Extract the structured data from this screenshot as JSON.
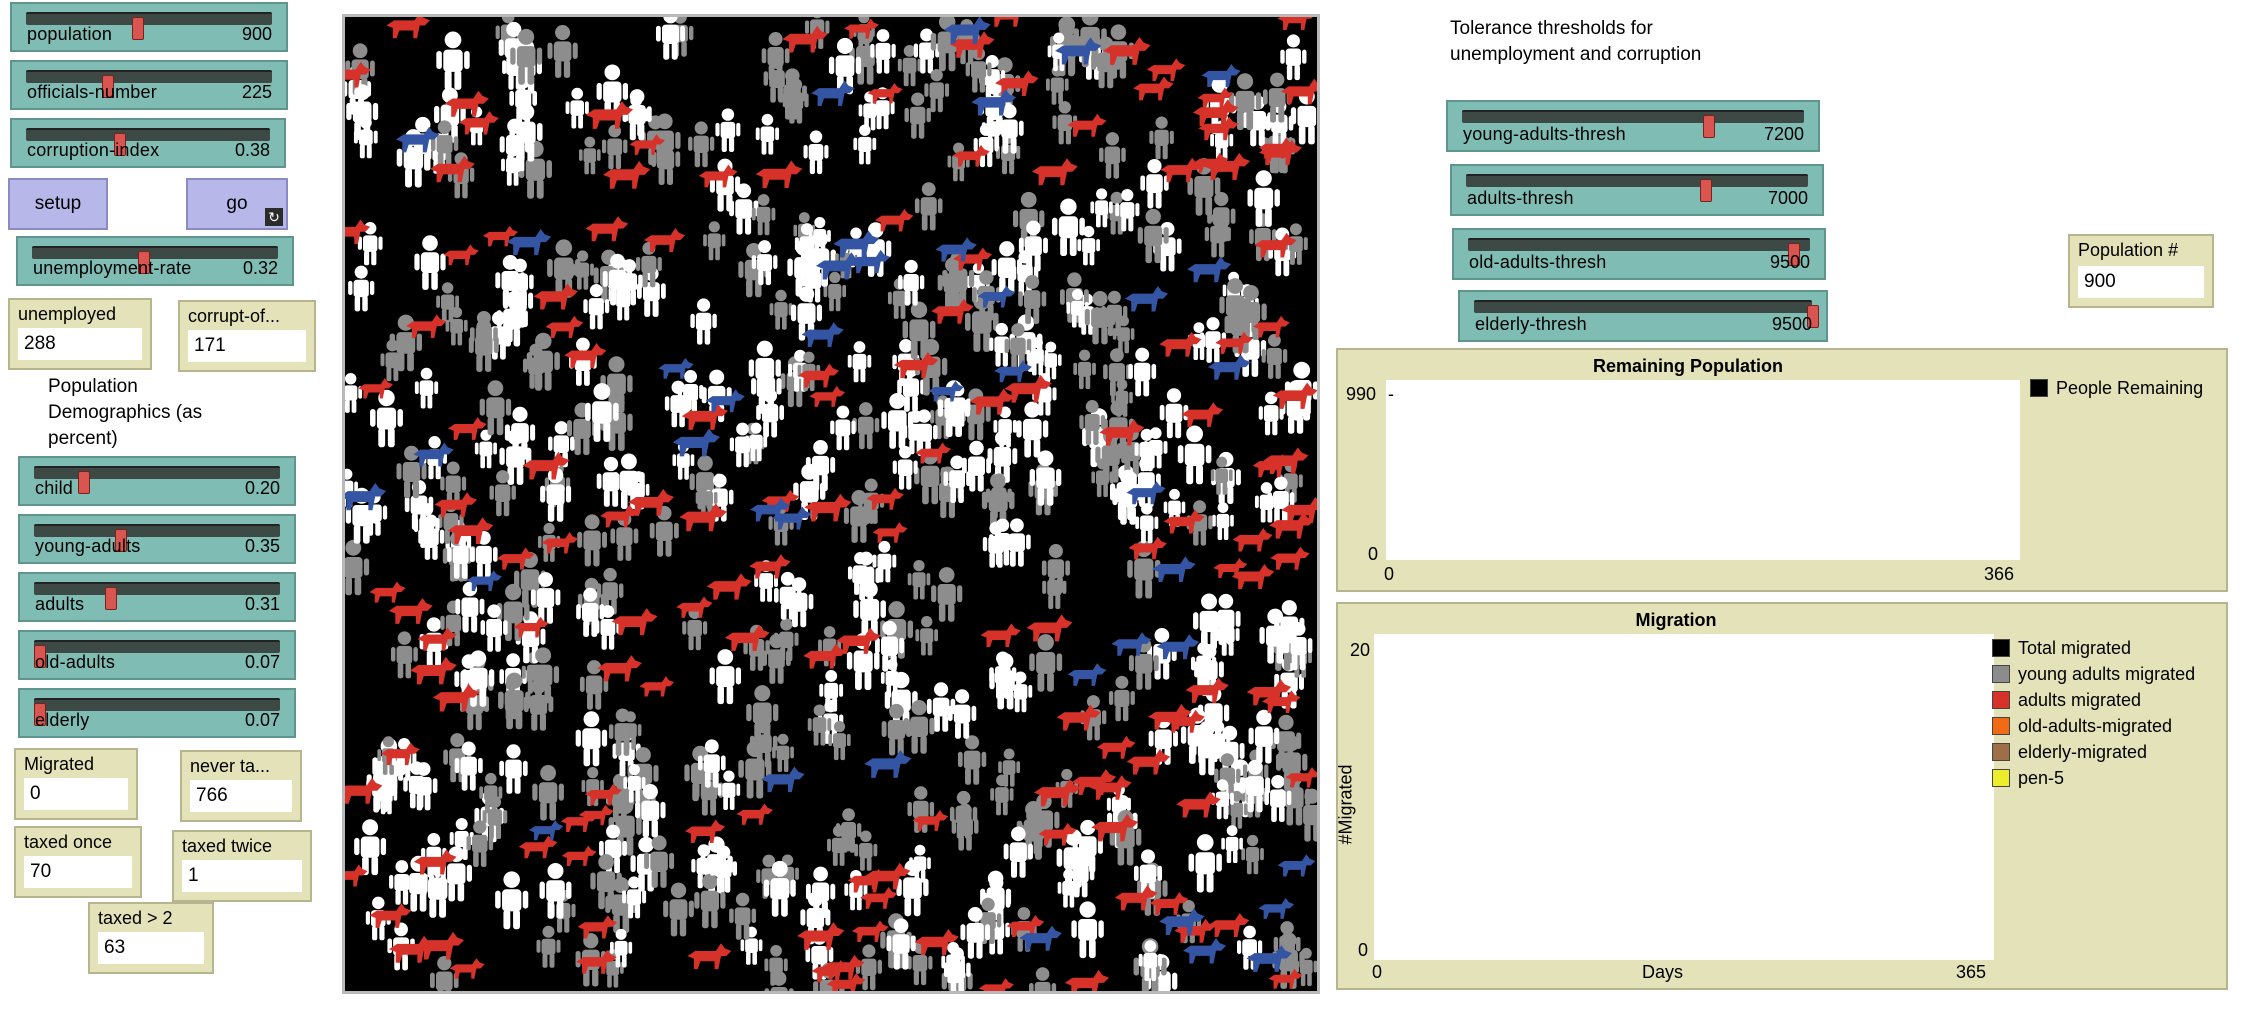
{
  "sliders": {
    "population": {
      "label": "population",
      "value": "900",
      "level": 0.45
    },
    "officials_number": {
      "label": "officials-number",
      "value": "225",
      "level": 0.33
    },
    "corruption_index": {
      "label": "corruption-index",
      "value": "0.38",
      "level": 0.38
    },
    "unemployment_rate": {
      "label": "unemployment-rate",
      "value": "0.32",
      "level": 0.45
    },
    "child": {
      "label": "child",
      "value": "0.20",
      "level": 0.2
    },
    "young_adults": {
      "label": "young-adults",
      "value": "0.35",
      "level": 0.35
    },
    "adults": {
      "label": "adults",
      "value": "0.31",
      "level": 0.31
    },
    "old_adults": {
      "label": "old-adults",
      "value": "0.07",
      "level": 0.01
    },
    "elderly": {
      "label": "elderly",
      "value": "0.07",
      "level": 0.01
    },
    "young_adults_thresh": {
      "label": "young-adults-thresh",
      "value": "7200",
      "level": 0.72
    },
    "adults_thresh": {
      "label": "adults-thresh",
      "value": "7000",
      "level": 0.7
    },
    "old_adults_thresh": {
      "label": "old-adults-thresh",
      "value": "9500",
      "level": 0.95
    },
    "elderly_thresh": {
      "label": "elderly-thresh",
      "value": "9500",
      "level": 1.0
    }
  },
  "buttons": {
    "setup": "setup",
    "go": "go"
  },
  "monitors": {
    "unemployed": {
      "label": "unemployed",
      "value": "288"
    },
    "corrupt_officials": {
      "label": "corrupt-of...",
      "value": "171"
    },
    "migrated": {
      "label": "Migrated",
      "value": "0"
    },
    "never_taxed": {
      "label": "never ta...",
      "value": "766"
    },
    "taxed_once": {
      "label": "taxed once",
      "value": "70"
    },
    "taxed_twice": {
      "label": "taxed twice",
      "value": "1"
    },
    "taxed_more": {
      "label": "taxed > 2",
      "value": "63"
    },
    "population_count": {
      "label": "Population #",
      "value": "900"
    }
  },
  "notes": {
    "demographics": "Population Demographics (as percent)",
    "tolerance": "Tolerance thresholds for unemployment and corruption"
  },
  "plots": {
    "remaining": {
      "title": "Remaining Population",
      "ymax": "990",
      "ymin": "0",
      "xmin": "0",
      "xmax": "366",
      "legend": [
        {
          "name": "People Remaining",
          "color": "#000000"
        }
      ]
    },
    "migration": {
      "title": "Migration",
      "ylabel": "#Migrated",
      "xlabel": "Days",
      "ymax": "20",
      "ymin": "0",
      "xmin": "0",
      "xmax": "365",
      "legend": [
        {
          "name": "Total migrated",
          "color": "#000000"
        },
        {
          "name": "young adults migrated",
          "color": "#8c8c8c"
        },
        {
          "name": "adults migrated",
          "color": "#d73229"
        },
        {
          "name": "old-adults-migrated",
          "color": "#f16a15"
        },
        {
          "name": "elderly-migrated",
          "color": "#9d6e48"
        },
        {
          "name": "pen-5",
          "color": "#eeed2b"
        }
      ]
    }
  },
  "world": {
    "background": "#000000",
    "agent_colors": {
      "people_white": "#ffffff",
      "people_gray": "#8d8d8d",
      "wolves_red": "#d73229",
      "wolves_blue": "#3455a4"
    }
  }
}
